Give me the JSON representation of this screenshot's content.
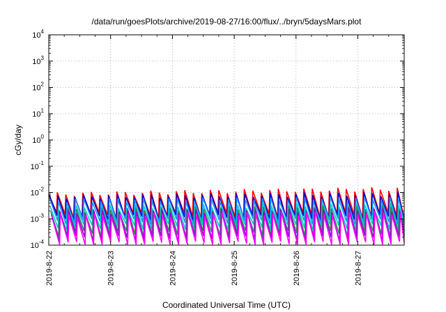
{
  "chart_data": {
    "type": "line",
    "title": "/data/run/goesPlots/archive/2019-08-27/16:00/flux/../bryn/5daysMars.plot",
    "xlabel": "Coordinated Universal Time (UTC)",
    "ylabel": "cGy/day",
    "yscale": "log",
    "ylim": [
      0.0001,
      10000
    ],
    "xlim": [
      "2019-08-22 00:00",
      "2019-08-27 18:00"
    ],
    "grid": true,
    "legend": "none",
    "x_tick_labels": [
      "2019-8-22",
      "2019-8-23",
      "2019-8-24",
      "2019-8-25",
      "2019-8-26",
      "2019-8-27"
    ],
    "y_tick_labels": [
      {
        "base": "10",
        "exp": "-4"
      },
      {
        "base": "10",
        "exp": "-3"
      },
      {
        "base": "10",
        "exp": "-2"
      },
      {
        "base": "10",
        "exp": "-1"
      },
      {
        "base": "10",
        "exp": "0"
      },
      {
        "base": "10",
        "exp": "1"
      },
      {
        "base": "10",
        "exp": "2"
      },
      {
        "base": "10",
        "exp": "3"
      },
      {
        "base": "10",
        "exp": "4"
      }
    ],
    "sawtooth_period_hours": 3.3,
    "series": [
      {
        "color": "#ff0000",
        "peak_start": 0.0085,
        "peak_end": 0.014,
        "trough": 0.0014
      },
      {
        "color": "#0000cc",
        "peak_start": 0.007,
        "peak_end": 0.009,
        "trough": 0.0011
      },
      {
        "color": "#1e90ff",
        "peak_start": 0.005,
        "peak_end": 0.006,
        "trough": 0.0008
      },
      {
        "color": "#00ced1",
        "peak_start": 0.0028,
        "peak_end": 0.0035,
        "trough": 0.0005
      },
      {
        "color": "#2e8b57",
        "peak_start": 0.0022,
        "peak_end": 0.0028,
        "trough": 0.00028
      },
      {
        "color": "#9400d3",
        "peak_start": 0.0018,
        "peak_end": 0.0022,
        "trough": 0.00018
      },
      {
        "color": "#ff00ff",
        "peak_start": 0.0013,
        "peak_end": 0.0017,
        "trough": 0.00011
      }
    ],
    "colors": {
      "frame": "#000000",
      "grid": "#a0a0a0",
      "background": "#ffffff"
    }
  }
}
